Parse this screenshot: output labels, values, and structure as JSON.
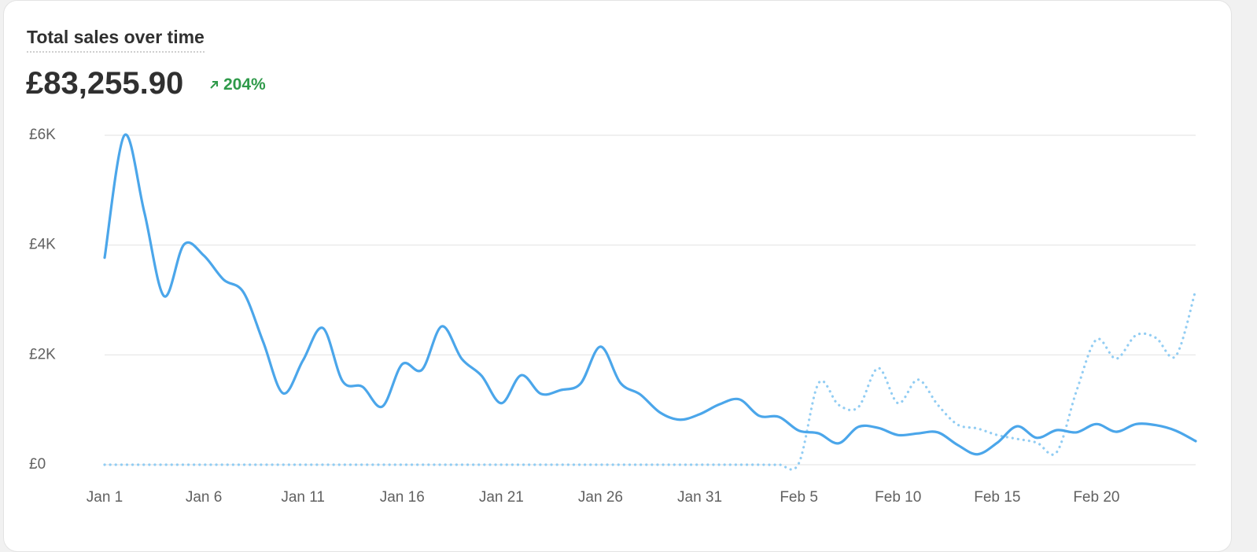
{
  "chart_data": {
    "type": "line",
    "title": "Total sales over time",
    "total": "£83,255.90",
    "change": "204%",
    "categories": [
      "Jan 1",
      null,
      null,
      null,
      null,
      "Jan 6",
      null,
      null,
      null,
      null,
      "Jan 11",
      null,
      null,
      null,
      null,
      "Jan 16",
      null,
      null,
      null,
      null,
      "Jan 21",
      null,
      null,
      null,
      null,
      "Jan 26",
      null,
      null,
      null,
      null,
      "Jan 31",
      null,
      null,
      null,
      null,
      "Feb 5",
      null,
      null,
      null,
      null,
      "Feb 10",
      null,
      null,
      null,
      null,
      "Feb 15",
      null,
      null,
      null,
      null,
      "Feb 20",
      null,
      null,
      null,
      null,
      null
    ],
    "series": [
      {
        "color": "#4ba6ea",
        "style": "solid",
        "values": [
          3770,
          6000,
          4600,
          3070,
          4010,
          3810,
          3370,
          3140,
          2230,
          1300,
          1900,
          2490,
          1520,
          1420,
          1060,
          1830,
          1730,
          2520,
          1930,
          1620,
          1120,
          1630,
          1290,
          1360,
          1480,
          2150,
          1490,
          1280,
          950,
          820,
          920,
          1100,
          1190,
          890,
          870,
          620,
          570,
          390,
          690,
          670,
          540,
          570,
          590,
          360,
          190,
          400,
          700,
          490,
          630,
          590,
          740,
          600,
          740,
          720,
          620,
          430
        ]
      },
      {
        "color": "#92cdf3",
        "style": "dotted",
        "values": [
          0,
          0,
          0,
          0,
          0,
          0,
          0,
          0,
          0,
          0,
          0,
          0,
          0,
          0,
          0,
          0,
          0,
          0,
          0,
          0,
          0,
          0,
          0,
          0,
          0,
          0,
          0,
          0,
          0,
          0,
          0,
          0,
          0,
          0,
          0,
          30,
          1490,
          1090,
          1050,
          1760,
          1120,
          1550,
          1090,
          730,
          660,
          540,
          470,
          400,
          230,
          1350,
          2280,
          1930,
          2360,
          2310,
          1980,
          3180
        ]
      }
    ],
    "ylim": [
      0,
      6000
    ],
    "yticks": [
      {
        "value": 0,
        "label": "£0"
      },
      {
        "value": 2000,
        "label": "£2K"
      },
      {
        "value": 4000,
        "label": "£4K"
      },
      {
        "value": 6000,
        "label": "£6K"
      }
    ],
    "grid": true
  }
}
